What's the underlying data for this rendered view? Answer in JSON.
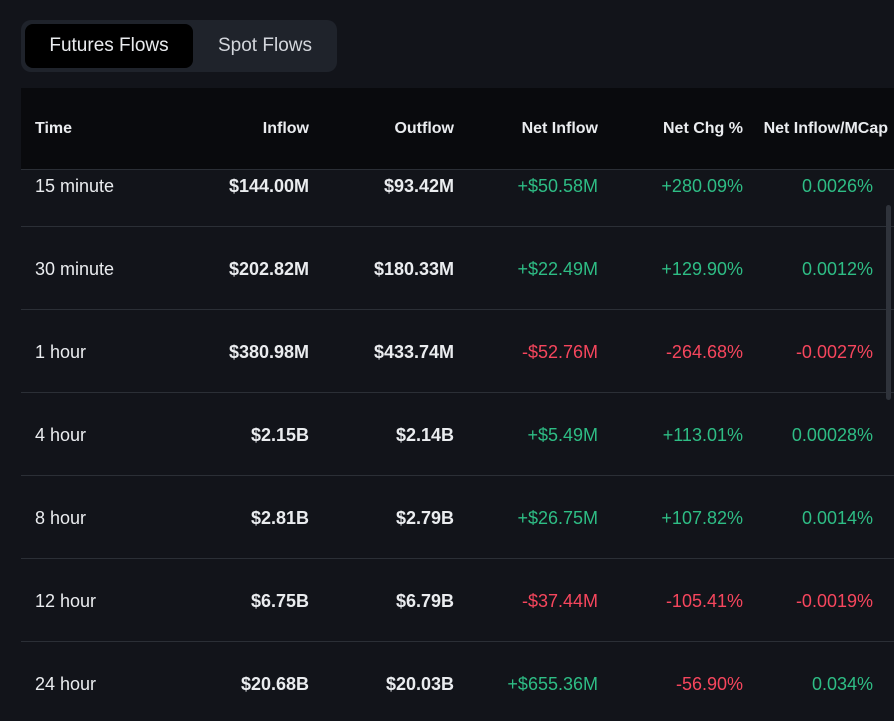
{
  "tabs": [
    {
      "label": "Futures Flows",
      "active": true
    },
    {
      "label": "Spot Flows",
      "active": false
    }
  ],
  "table": {
    "columns": [
      "Time",
      "Inflow",
      "Outflow",
      "Net Inflow",
      "Net Chg %",
      "Net Inflow/MCap"
    ],
    "rows": [
      {
        "time": "15 minute",
        "inflow": "$144.00M",
        "outflow": "$93.42M",
        "net_inflow": "+$50.58M",
        "net_chg": "+280.09%",
        "mcap": "0.0026%",
        "net_sign": "pos",
        "chg_sign": "pos",
        "mcap_sign": "pos"
      },
      {
        "time": "30 minute",
        "inflow": "$202.82M",
        "outflow": "$180.33M",
        "net_inflow": "+$22.49M",
        "net_chg": "+129.90%",
        "mcap": "0.0012%",
        "net_sign": "pos",
        "chg_sign": "pos",
        "mcap_sign": "pos"
      },
      {
        "time": "1 hour",
        "inflow": "$380.98M",
        "outflow": "$433.74M",
        "net_inflow": "-$52.76M",
        "net_chg": "-264.68%",
        "mcap": "-0.0027%",
        "net_sign": "neg",
        "chg_sign": "neg",
        "mcap_sign": "neg"
      },
      {
        "time": "4 hour",
        "inflow": "$2.15B",
        "outflow": "$2.14B",
        "net_inflow": "+$5.49M",
        "net_chg": "+113.01%",
        "mcap": "0.00028%",
        "net_sign": "pos",
        "chg_sign": "pos",
        "mcap_sign": "pos"
      },
      {
        "time": "8 hour",
        "inflow": "$2.81B",
        "outflow": "$2.79B",
        "net_inflow": "+$26.75M",
        "net_chg": "+107.82%",
        "mcap": "0.0014%",
        "net_sign": "pos",
        "chg_sign": "pos",
        "mcap_sign": "pos"
      },
      {
        "time": "12 hour",
        "inflow": "$6.75B",
        "outflow": "$6.79B",
        "net_inflow": "-$37.44M",
        "net_chg": "-105.41%",
        "mcap": "-0.0019%",
        "net_sign": "neg",
        "chg_sign": "neg",
        "mcap_sign": "neg"
      },
      {
        "time": "24 hour",
        "inflow": "$20.68B",
        "outflow": "$20.03B",
        "net_inflow": "+$655.36M",
        "net_chg": "-56.90%",
        "mcap": "0.034%",
        "net_sign": "pos",
        "chg_sign": "neg",
        "mcap_sign": "pos"
      }
    ]
  },
  "colors": {
    "positive": "#2ebd85",
    "negative": "#f6465d",
    "background": "#12141a",
    "header_background": "#090a0d"
  }
}
